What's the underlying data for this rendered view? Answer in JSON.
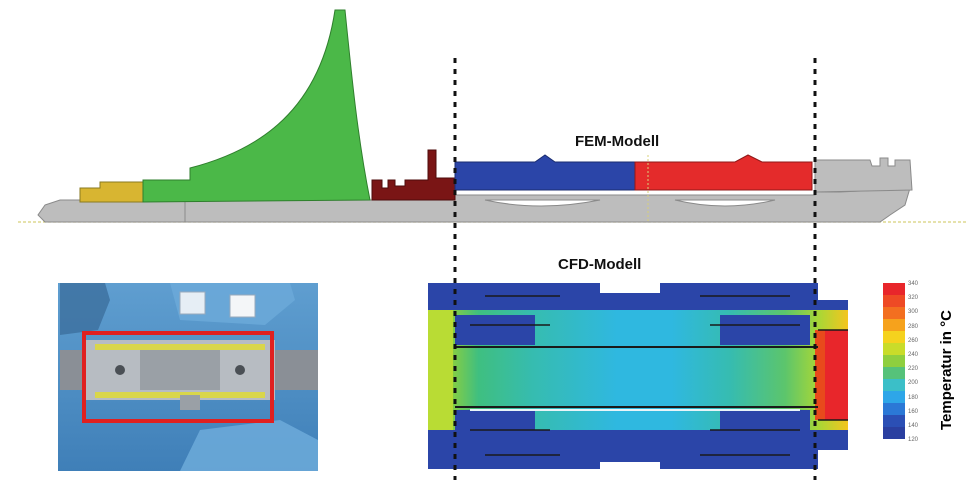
{
  "fem_model_label": "FEM-Modell",
  "cfd_model_label": "CFD-Modell",
  "colorbar": {
    "axis_label": "Temperatur in °C",
    "ticks": [
      "340",
      "320",
      "300",
      "280",
      "260",
      "240",
      "220",
      "200",
      "180",
      "160",
      "140",
      "120"
    ],
    "colors": [
      "#e8262b",
      "#ee4a25",
      "#f36f20",
      "#f6a21c",
      "#f5d21e",
      "#c9dc2a",
      "#8fcf3f",
      "#56c27a",
      "#3bbfc8",
      "#2ea6e8",
      "#2b78d6",
      "#2b4fb5",
      "#2a3fa0"
    ]
  },
  "colors": {
    "yellow_part": "#d8b531",
    "green_part": "#4bb848",
    "darkred_part": "#7a1515",
    "blue_part": "#2b45a8",
    "red_part": "#e42b2b",
    "grey_shaft": "#bdbdbd",
    "photo_highlight": "#e02020"
  }
}
